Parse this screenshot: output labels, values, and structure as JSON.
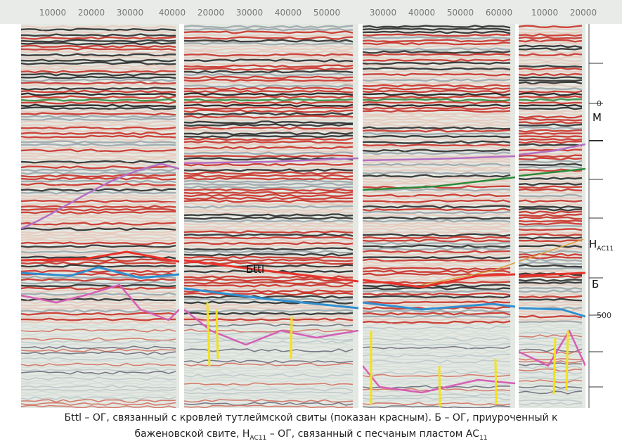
{
  "top_axis": [
    "10000",
    "20000",
    "30000",
    "40000",
    "20000",
    "30000",
    "40000",
    "50000",
    "30000",
    "40000",
    "50000",
    "60000",
    "10000",
    "20000"
  ],
  "right_axis": [
    "0",
    "500"
  ],
  "horizon_labels": {
    "m": "М",
    "h_main": "Н",
    "h_sub": "АС11",
    "b": "Б",
    "bttl": "Бttl"
  },
  "caption": {
    "part1": "Бttl – ОГ, связанный с кровлей тутлеймской свиты (показан красным). Б – ОГ, приуроченный к",
    "part2": "баженовской свите, Н",
    "sub1": "АС11",
    "part3": " – ОГ, связанный с песчаным пластом АС",
    "sub2": "11"
  }
}
